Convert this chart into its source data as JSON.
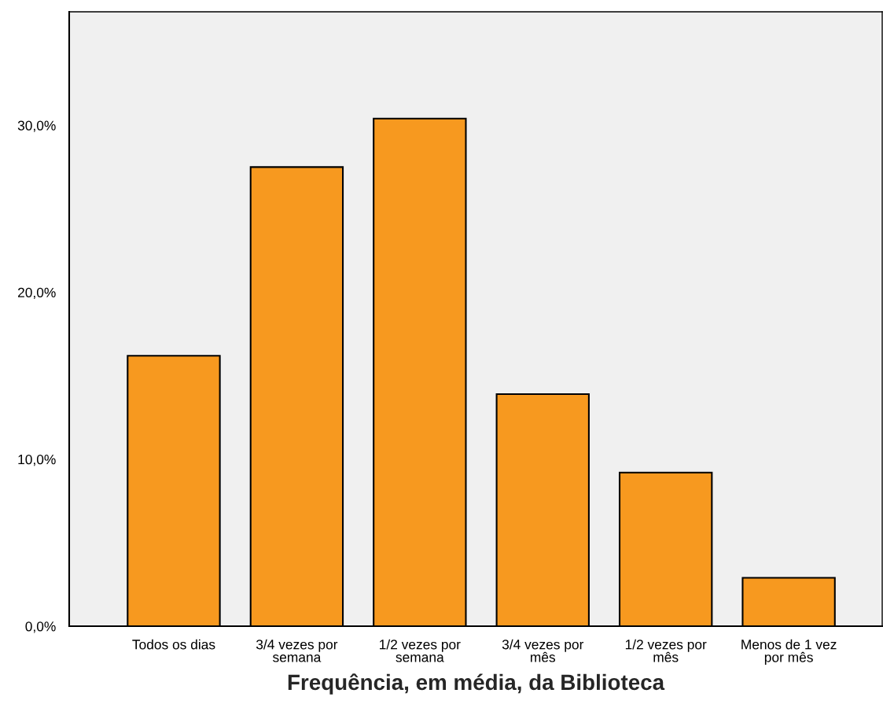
{
  "chart_data": {
    "type": "bar",
    "xlabel": "Frequência, em média, da Biblioteca",
    "categories": [
      "Todos os dias",
      "3/4 vezes por\nsemana",
      "1/2 vezes por\nsemana",
      "3/4 vezes por\nmês",
      "1/2 vezes por\nmês",
      "Menos de 1 vez\npor mês"
    ],
    "values": [
      16.2,
      27.5,
      30.4,
      13.9,
      9.2,
      2.9
    ],
    "color": "#f7991f",
    "ylim": [
      0,
      36.8
    ],
    "yticks": [
      {
        "value": 0,
        "label": "0,0%"
      },
      {
        "value": 10,
        "label": "10,0%"
      },
      {
        "value": 20,
        "label": "20,0%"
      },
      {
        "value": 30,
        "label": "30,0%"
      }
    ],
    "grid": false
  }
}
